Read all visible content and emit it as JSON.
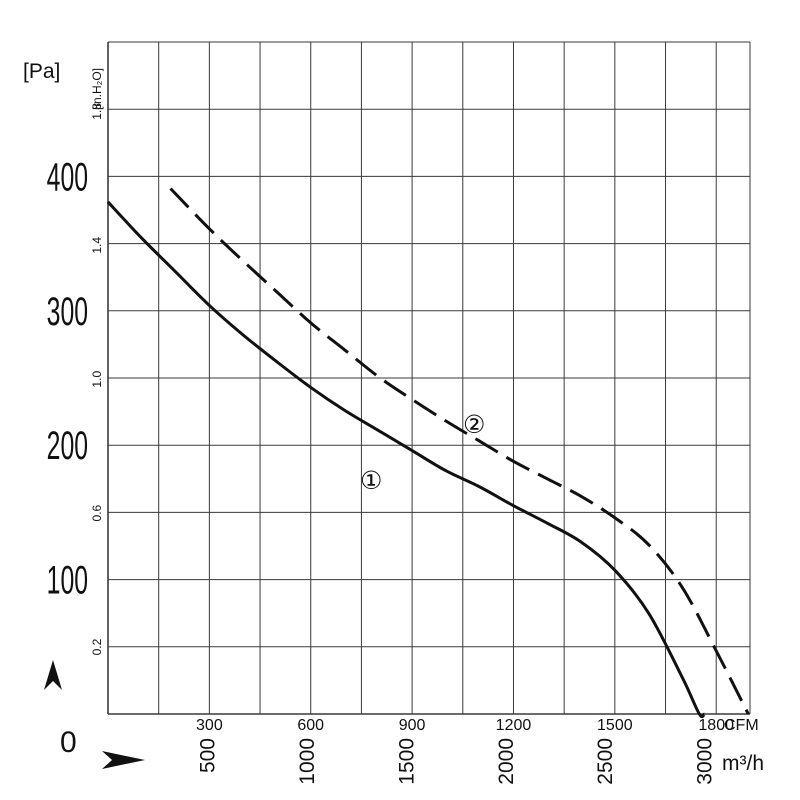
{
  "chart_data": {
    "type": "line",
    "title": "",
    "xlabel_cfm": "CFM",
    "xlabel_m3h": "m³/h",
    "ylabel_pa": "[Pa]",
    "ylabel_inh2o": "[in.H₂O]",
    "xlim_cfm": [
      0,
      1900
    ],
    "ylim_pa": [
      0,
      500
    ],
    "grid": true,
    "legend": "inline",
    "x_ticks_cfm": [
      "300",
      "600",
      "900",
      "1200",
      "1500",
      "1800"
    ],
    "x_ticks_m3h": [
      "500",
      "1000",
      "1500",
      "2000",
      "2500",
      "3000"
    ],
    "y_ticks_pa": [
      "100",
      "200",
      "300",
      "400"
    ],
    "y_ticks_inh2o": [
      "0.2",
      "0.6",
      "1.0",
      "1.4",
      "1.8"
    ],
    "origin_label": "0",
    "series": [
      {
        "name": "①",
        "style": "solid",
        "x": [
          0,
          100,
          200,
          300,
          400,
          500,
          600,
          700,
          800,
          900,
          1000,
          1100,
          1200,
          1300,
          1400,
          1500,
          1600,
          1700,
          1750,
          1765
        ],
        "y": [
          381,
          354,
          329,
          304,
          282,
          262,
          243,
          226,
          211,
          196,
          181,
          169,
          155,
          142,
          128,
          107,
          75,
          27,
          0,
          0
        ]
      },
      {
        "name": "②",
        "style": "dashed",
        "x": [
          185,
          300,
          400,
          500,
          600,
          700,
          800,
          900,
          1000,
          1100,
          1200,
          1300,
          1400,
          1500,
          1600,
          1700,
          1800,
          1895
        ],
        "y": [
          391,
          361,
          337,
          314,
          291,
          271,
          251,
          234,
          218,
          203,
          188,
          175,
          162,
          146,
          126,
          94,
          47,
          0
        ]
      }
    ]
  },
  "axis_glyphs": {
    "up_arrow": "up-arrowhead-icon",
    "right_arrow": "right-arrowhead-icon"
  },
  "colors": {
    "curve": "#111111",
    "grid": "#3a3a3a"
  }
}
